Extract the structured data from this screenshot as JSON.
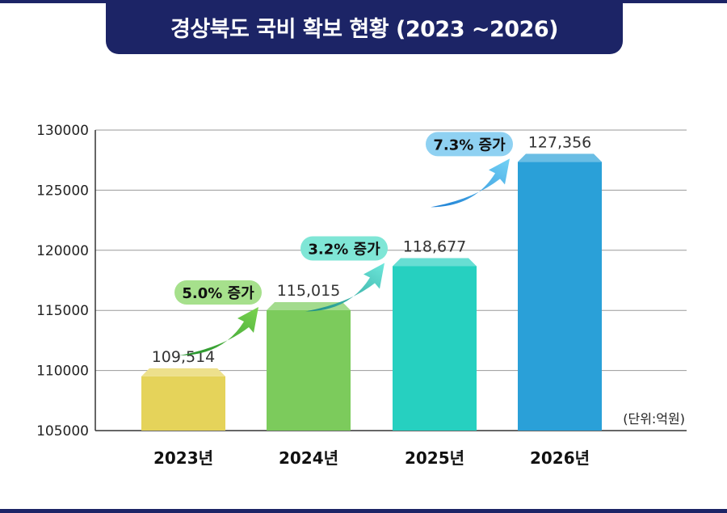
{
  "title": "경상북도 국비 확보 현황 (2023 ~2026)",
  "unit_note": "(단위:억원)",
  "colors": {
    "banner": "#1c2466",
    "bar_2023": "#e5d35a",
    "bar_2024": "#7ccb5c",
    "bar_2025": "#26d0c0",
    "bar_2026": "#2aa0d8"
  },
  "chart_data": {
    "type": "bar",
    "categories": [
      "2023년",
      "2024년",
      "2025년",
      "2026년"
    ],
    "values": [
      109514,
      115015,
      118677,
      127356
    ],
    "value_labels": [
      "109,514",
      "115,015",
      "118,677",
      "127,356"
    ],
    "yticks": [
      "130000",
      "125000",
      "120000",
      "115000",
      "110000",
      "105000"
    ],
    "ylim": [
      105000,
      130000
    ],
    "grid": true,
    "annotations": [
      {
        "text": "5.0% 증가",
        "from": "2023년",
        "to": "2024년",
        "color": "#a6e08c",
        "arrow": [
          "#1f8e2a",
          "#7cd450"
        ]
      },
      {
        "text": "3.2% 증가",
        "from": "2024년",
        "to": "2025년",
        "color": "#7fe6d6",
        "arrow": [
          "#1a8c84",
          "#6ee8dc"
        ]
      },
      {
        "text": "7.3% 증가",
        "from": "2025년",
        "to": "2026년",
        "color": "#8fd1f2",
        "arrow": [
          "#1c7fd4",
          "#74d3f5"
        ]
      }
    ]
  }
}
